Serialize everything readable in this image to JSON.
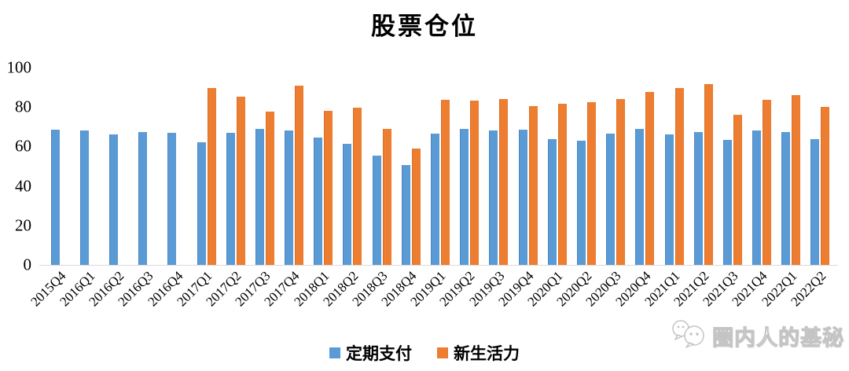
{
  "title": "股票仓位",
  "y_axis": {
    "ticks": [
      0,
      20,
      40,
      60,
      80,
      100
    ]
  },
  "legend": {
    "items": [
      {
        "label": "定期支付",
        "color": "#5B9BD5"
      },
      {
        "label": "新生活力",
        "color": "#ED7D31"
      }
    ]
  },
  "watermark": {
    "text": "圈内人的基秘",
    "icon": "wechat-bubbles-icon"
  },
  "colors": {
    "bar_blue": "#5B9BD5",
    "bar_orange": "#ED7D31",
    "axis_line": "#D9D9D9",
    "text": "#000000",
    "watermark_gray": "#C4C4C4"
  },
  "chart_data": {
    "type": "bar",
    "title": "股票仓位",
    "categories": [
      "2015Q4",
      "2016Q1",
      "2016Q2",
      "2016Q3",
      "2016Q4",
      "2017Q1",
      "2017Q2",
      "2017Q3",
      "2017Q4",
      "2018Q1",
      "2018Q2",
      "2018Q3",
      "2018Q4",
      "2019Q1",
      "2019Q2",
      "2019Q3",
      "2019Q4",
      "2020Q1",
      "2020Q2",
      "2020Q3",
      "2020Q4",
      "2021Q1",
      "2021Q2",
      "2021Q3",
      "2021Q4",
      "2022Q1",
      "2022Q2"
    ],
    "series": [
      {
        "name": "定期支付",
        "color": "#5B9BD5",
        "values": [
          68.5,
          68.3,
          66.2,
          67.3,
          66.8,
          62.1,
          66.8,
          69.0,
          68.2,
          64.4,
          61.5,
          55.5,
          50.8,
          66.6,
          69.0,
          68.2,
          68.6,
          63.8,
          63.0,
          66.5,
          68.8,
          66.2,
          67.5,
          63.2,
          68.2,
          67.4,
          63.9
        ]
      },
      {
        "name": "新生活力",
        "color": "#ED7D31",
        "values": [
          null,
          null,
          null,
          null,
          null,
          89.8,
          85.2,
          77.8,
          90.8,
          77.9,
          79.8,
          68.9,
          59.0,
          83.5,
          83.1,
          84.2,
          80.3,
          81.8,
          82.5,
          84.2,
          87.5,
          89.6,
          91.5,
          76.1,
          83.7,
          86.1,
          80.2
        ]
      }
    ],
    "xlabel": "",
    "ylabel": "",
    "ylim": [
      0,
      100
    ],
    "yticks": [
      0,
      20,
      40,
      60,
      80,
      100
    ],
    "grid": false,
    "legend_position": "bottom"
  }
}
